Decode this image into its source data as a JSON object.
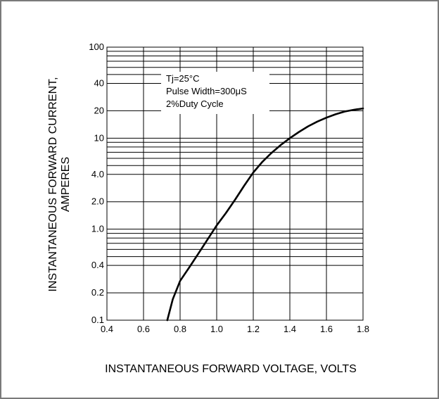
{
  "chart_data": {
    "type": "line",
    "title": "",
    "xlabel": "INSTANTANEOUS FORWARD VOLTAGE, VOLTS",
    "ylabel_line1": "INSTANTANEOUS FORWARD CURRENT,",
    "ylabel_line2": "AMPERES",
    "xscale": "linear",
    "yscale": "log",
    "xlim": [
      0.4,
      1.8
    ],
    "ylim": [
      0.1,
      100
    ],
    "grid": true,
    "x_ticks": [
      {
        "v": 0.4,
        "label": "0.4"
      },
      {
        "v": 0.6,
        "label": "0.6"
      },
      {
        "v": 0.8,
        "label": "0.8"
      },
      {
        "v": 1.0,
        "label": "1.0"
      },
      {
        "v": 1.2,
        "label": "1.2"
      },
      {
        "v": 1.4,
        "label": "1.4"
      },
      {
        "v": 1.6,
        "label": "1.6"
      },
      {
        "v": 1.8,
        "label": "1.8"
      }
    ],
    "y_ticks": [
      {
        "v": 100,
        "label": "100"
      },
      {
        "v": 40,
        "label": "40"
      },
      {
        "v": 20,
        "label": "20"
      },
      {
        "v": 10,
        "label": "10"
      },
      {
        "v": 4,
        "label": "4.0"
      },
      {
        "v": 2,
        "label": "2.0"
      },
      {
        "v": 1,
        "label": "1.0"
      },
      {
        "v": 0.4,
        "label": "0.4"
      },
      {
        "v": 0.2,
        "label": "0.2"
      },
      {
        "v": 0.1,
        "label": "0.1"
      }
    ],
    "y_gridlines": [
      0.1,
      0.2,
      0.4,
      0.5,
      0.6,
      0.7,
      0.8,
      0.9,
      1,
      2,
      4,
      5,
      6,
      7,
      8,
      9,
      10,
      20,
      40,
      50,
      60,
      70,
      80,
      90,
      100
    ],
    "annotations": [
      "Tj=25°C",
      "Pulse Width=300μS",
      "2%Duty Cycle"
    ],
    "series": [
      {
        "x": [
          0.73,
          0.76,
          0.8,
          0.85,
          0.9,
          0.95,
          1.0,
          1.05,
          1.1,
          1.15,
          1.2,
          1.25,
          1.3,
          1.35,
          1.4,
          1.45,
          1.5,
          1.55,
          1.6,
          1.65,
          1.7,
          1.75,
          1.8
        ],
        "y": [
          0.1,
          0.17,
          0.27,
          0.38,
          0.54,
          0.77,
          1.1,
          1.5,
          2.1,
          3.0,
          4.2,
          5.5,
          6.9,
          8.4,
          10.0,
          11.7,
          13.5,
          15.2,
          16.8,
          18.3,
          19.6,
          20.5,
          21.2
        ],
        "color": "#000000"
      }
    ]
  }
}
